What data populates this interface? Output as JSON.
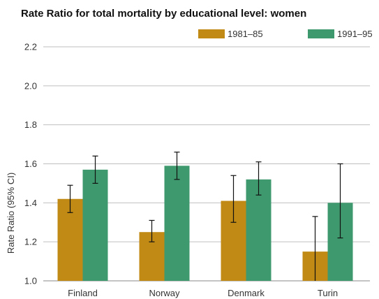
{
  "chart_data": {
    "type": "bar",
    "title": "Rate Ratio for total mortality by educational level: women",
    "xlabel": "",
    "ylabel": "Rate Ratio (95% CI)",
    "ylim": [
      1.0,
      2.2
    ],
    "yticks": [
      "1.0",
      "1.2",
      "1.4",
      "1.6",
      "1.8",
      "2.0",
      "2.2"
    ],
    "categories": [
      "Finland",
      "Norway",
      "Denmark",
      "Turin"
    ],
    "grid": true,
    "legend_position": "top-right",
    "series": [
      {
        "name": "1981–85",
        "color": "#c08a14",
        "values": [
          1.42,
          1.25,
          1.41,
          1.15
        ],
        "ci_low": [
          1.35,
          1.2,
          1.3,
          0.98
        ],
        "ci_high": [
          1.49,
          1.31,
          1.54,
          1.33
        ]
      },
      {
        "name": "1991–95",
        "color": "#3e9a6e",
        "values": [
          1.57,
          1.59,
          1.52,
          1.4
        ],
        "ci_low": [
          1.5,
          1.52,
          1.44,
          1.22
        ],
        "ci_high": [
          1.64,
          1.66,
          1.61,
          1.6
        ]
      }
    ]
  }
}
